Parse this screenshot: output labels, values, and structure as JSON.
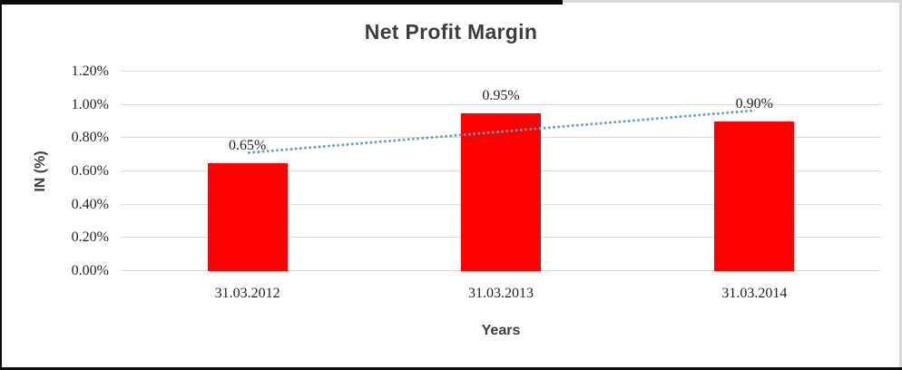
{
  "chart_data": {
    "type": "bar",
    "title": "Net Profit Margin",
    "xlabel": "Years",
    "ylabel": "IN (%)",
    "categories": [
      "31.03.2012",
      "31.03.2013",
      "31.03.2014"
    ],
    "values": [
      0.65,
      0.95,
      0.9
    ],
    "data_labels": [
      "0.65%",
      "0.95%",
      "0.90%"
    ],
    "y_ticks": [
      "0.00%",
      "0.20%",
      "0.40%",
      "0.60%",
      "0.80%",
      "1.00%",
      "1.20%"
    ],
    "y_tick_values": [
      0,
      0.2,
      0.4,
      0.6,
      0.8,
      1.0,
      1.2
    ],
    "ylim": [
      0,
      1.2
    ],
    "grid": true,
    "legend": "none",
    "bar_color": "#ff0000",
    "gridline_color": "#d9d9d9",
    "text_color": "#1f1f1f",
    "title_color": "#3d3d3d",
    "trendline": {
      "style": "dotted",
      "color": "#5b9bd5",
      "start_value": 0.71,
      "end_value": 0.965
    }
  }
}
